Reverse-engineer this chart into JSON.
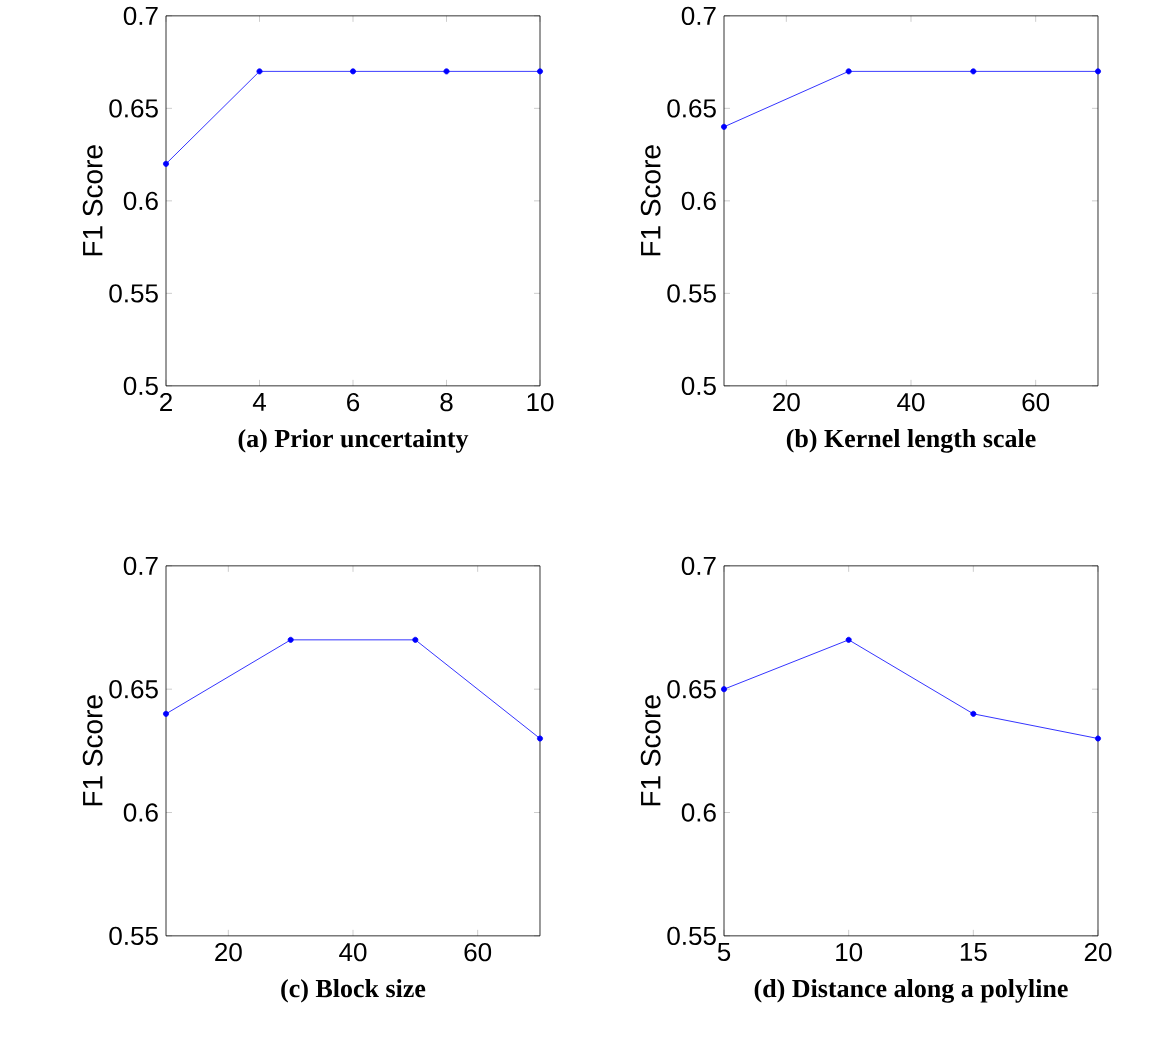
{
  "chart_data": [
    {
      "type": "line",
      "xlabel": "(a) Prior uncertainty",
      "ylabel": "F1 Score",
      "marker": "circle",
      "grid": false,
      "x": [
        2,
        4,
        6,
        8,
        10
      ],
      "series": [
        {
          "color": "#0000ff",
          "values": [
            0.62,
            0.67,
            0.67,
            0.67,
            0.67
          ]
        }
      ],
      "xlim": [
        2,
        10
      ],
      "ylim": [
        0.5,
        0.7
      ],
      "xticks": [
        2,
        4,
        6,
        8,
        10
      ],
      "yticks": [
        0.5,
        0.55,
        0.6,
        0.65,
        0.7
      ]
    },
    {
      "type": "line",
      "xlabel": "(b) Kernel length scale",
      "ylabel": "F1 Score",
      "marker": "circle",
      "grid": false,
      "x": [
        10,
        30,
        50,
        70
      ],
      "series": [
        {
          "color": "#0000ff",
          "values": [
            0.64,
            0.67,
            0.67,
            0.67
          ]
        }
      ],
      "xlim": [
        10,
        70
      ],
      "ylim": [
        0.5,
        0.7
      ],
      "xticks": [
        20,
        40,
        60
      ],
      "yticks": [
        0.5,
        0.55,
        0.6,
        0.65,
        0.7
      ]
    },
    {
      "type": "line",
      "xlabel": "(c) Block size",
      "ylabel": "F1 Score",
      "marker": "circle",
      "grid": false,
      "x": [
        10,
        30,
        50,
        70
      ],
      "series": [
        {
          "color": "#0000ff",
          "values": [
            0.64,
            0.67,
            0.67,
            0.63
          ]
        }
      ],
      "xlim": [
        10,
        70
      ],
      "ylim": [
        0.55,
        0.7
      ],
      "xticks": [
        20,
        40,
        60
      ],
      "yticks": [
        0.55,
        0.6,
        0.65,
        0.7
      ]
    },
    {
      "type": "line",
      "xlabel": "(d) Distance along a polyline",
      "ylabel": "F1 Score",
      "marker": "circle",
      "grid": false,
      "x": [
        5,
        10,
        15,
        20
      ],
      "series": [
        {
          "color": "#0000ff",
          "values": [
            0.65,
            0.67,
            0.64,
            0.63
          ]
        }
      ],
      "xlim": [
        5,
        20
      ],
      "ylim": [
        0.55,
        0.7
      ],
      "xticks": [
        5,
        10,
        15,
        20
      ],
      "yticks": [
        0.55,
        0.6,
        0.65,
        0.7
      ]
    }
  ]
}
